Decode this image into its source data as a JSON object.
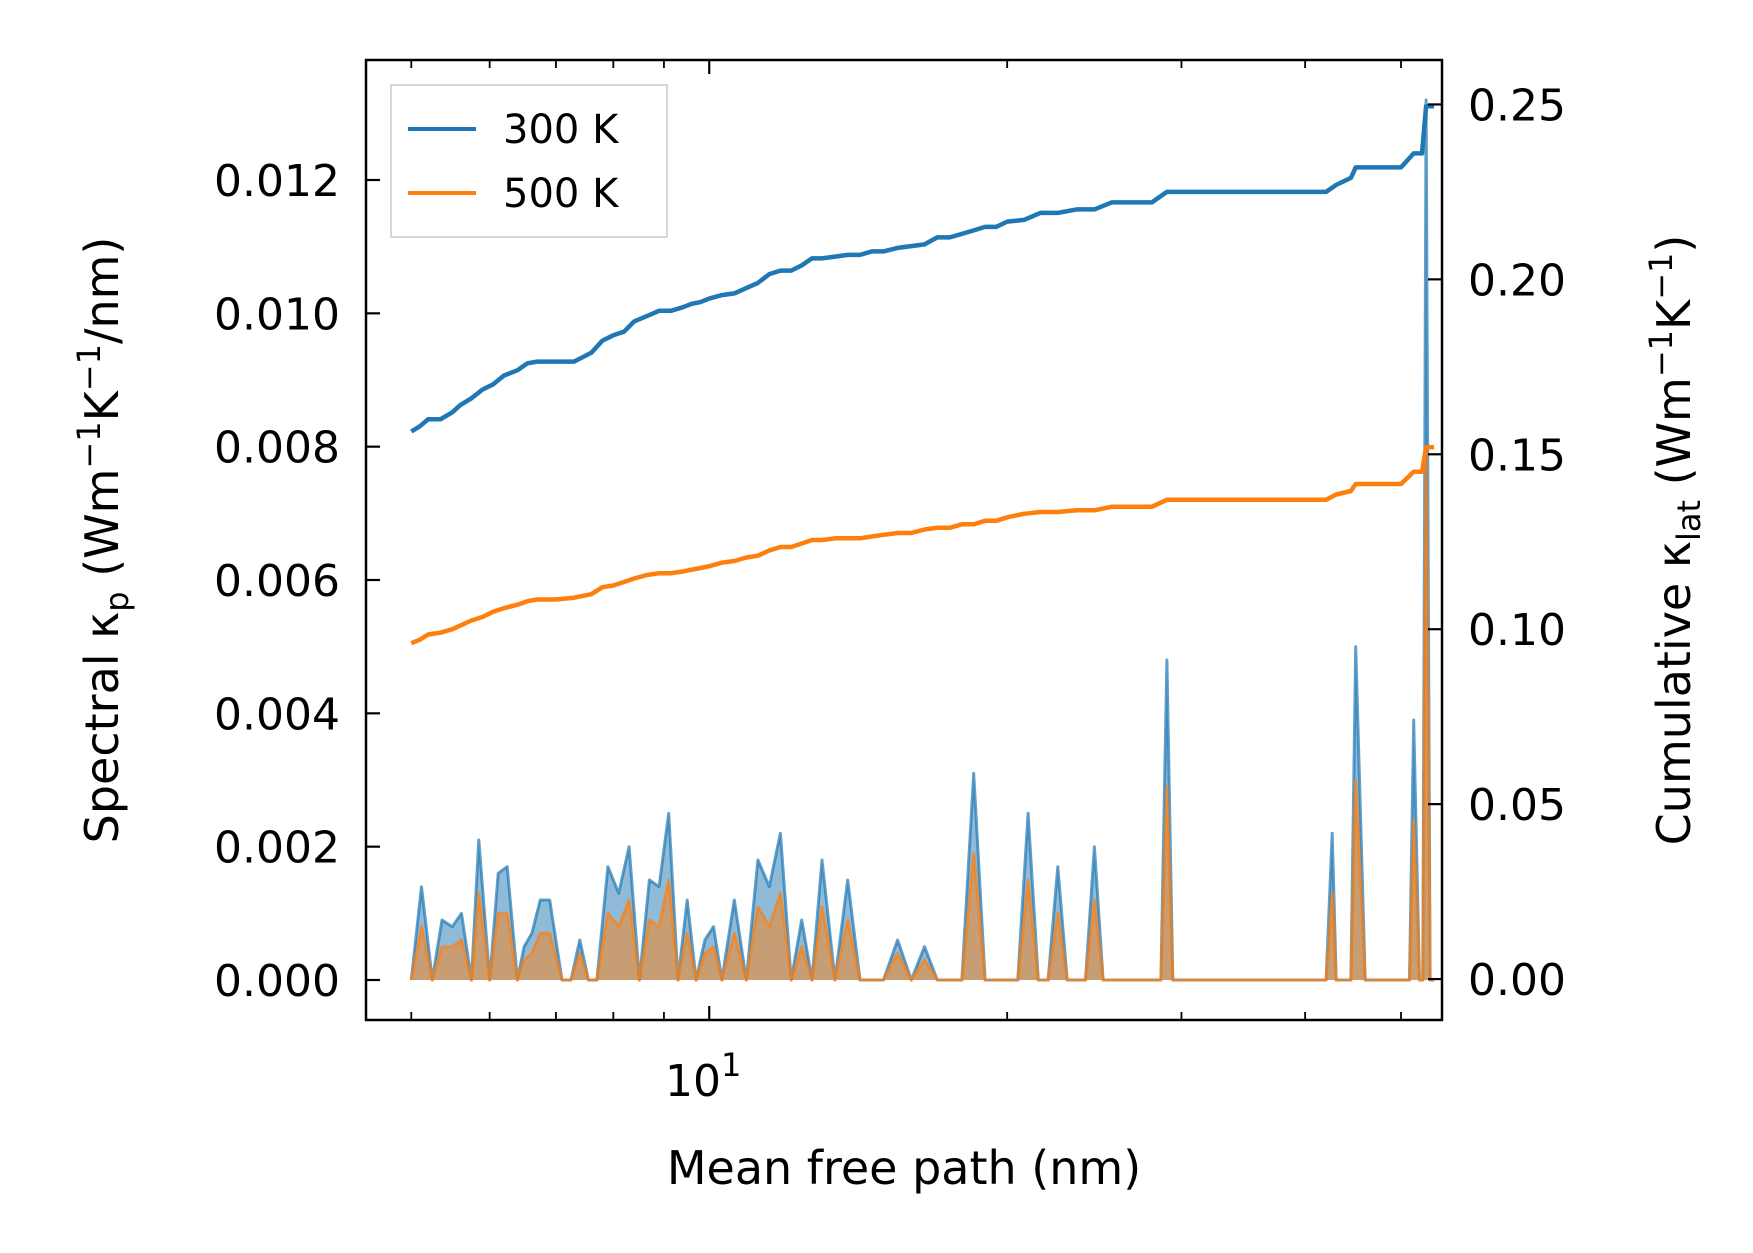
{
  "chart_data": {
    "type": "line",
    "xscale": "log",
    "xlabel": "Mean free path (nm)",
    "ylabel_left": {
      "main": "Spectral κ",
      "sub": "p",
      "unit": " (Wm",
      "e1": "−1",
      "mid": "K",
      "e2": "−1",
      "end": "/nm)"
    },
    "ylabel_right": {
      "main": "Cumulative κ",
      "sub": "lat",
      "unit": " (Wm",
      "e1": "−1",
      "mid": "K",
      "e2": "−1",
      "end": ")"
    },
    "xlim": [
      4.5,
      55
    ],
    "ylim_left": [
      -0.0006,
      0.0138
    ],
    "ylim_right": [
      -0.0117,
      0.2627
    ],
    "x_tick_labels": [
      {
        "value": 10,
        "base": "10",
        "exp": "1"
      }
    ],
    "y_left_ticks": [
      0.0,
      0.002,
      0.004,
      0.006,
      0.008,
      0.01,
      0.012
    ],
    "y_left_tick_labels": [
      "0.000",
      "0.002",
      "0.004",
      "0.006",
      "0.008",
      "0.010",
      "0.012"
    ],
    "y_right_ticks": [
      0.0,
      0.05,
      0.1,
      0.15,
      0.2,
      0.25
    ],
    "y_right_tick_labels": [
      "0.00",
      "0.05",
      "0.10",
      "0.15",
      "0.20",
      "0.25"
    ],
    "legend": {
      "position": "upper left",
      "entries": [
        {
          "label": "300 K",
          "color": "#1f77b4"
        },
        {
          "label": "500 K",
          "color": "#ff7f0e"
        }
      ]
    },
    "cumulative_series": [
      {
        "name": "300 K",
        "color": "#1f77b4",
        "axis": "right",
        "x": [
          5.0,
          5.1,
          5.2,
          5.35,
          5.5,
          5.6,
          5.75,
          5.9,
          6.05,
          6.2,
          6.4,
          6.55,
          6.7,
          6.85,
          7.0,
          7.3,
          7.6,
          7.8,
          8.0,
          8.2,
          8.4,
          8.65,
          8.9,
          9.15,
          9.4,
          9.6,
          9.8,
          10.0,
          10.3,
          10.6,
          10.9,
          11.2,
          11.5,
          11.8,
          12.1,
          12.4,
          12.7,
          13.0,
          13.4,
          13.8,
          14.2,
          14.6,
          15.0,
          15.5,
          16.0,
          16.5,
          17.0,
          17.5,
          18.0,
          18.5,
          19.0,
          19.5,
          20.0,
          20.8,
          21.6,
          22.5,
          23.5,
          24.5,
          25.5,
          26.5,
          28.0,
          29.0,
          31.0,
          34.0,
          37.0,
          40.0,
          42.0,
          43.0,
          44.5,
          45.0,
          46.5,
          48.0,
          50.0,
          51.5,
          52.5,
          53.0,
          54.0
        ],
        "y": [
          0.1565,
          0.158,
          0.16,
          0.16,
          0.162,
          0.164,
          0.166,
          0.1685,
          0.17,
          0.1725,
          0.174,
          0.176,
          0.1765,
          0.1765,
          0.1765,
          0.1765,
          0.179,
          0.1825,
          0.184,
          0.185,
          0.188,
          0.1895,
          0.191,
          0.191,
          0.192,
          0.193,
          0.1935,
          0.1945,
          0.1955,
          0.196,
          0.1975,
          0.199,
          0.2015,
          0.2025,
          0.2025,
          0.204,
          0.206,
          0.206,
          0.2065,
          0.207,
          0.207,
          0.208,
          0.208,
          0.209,
          0.2095,
          0.21,
          0.212,
          0.212,
          0.213,
          0.214,
          0.215,
          0.215,
          0.2165,
          0.217,
          0.219,
          0.219,
          0.22,
          0.22,
          0.222,
          0.222,
          0.222,
          0.225,
          0.225,
          0.225,
          0.225,
          0.225,
          0.225,
          0.227,
          0.229,
          0.232,
          0.232,
          0.232,
          0.232,
          0.236,
          0.236,
          0.2495,
          0.2495
        ]
      },
      {
        "name": "500 K",
        "color": "#ff7f0e",
        "axis": "right",
        "x": [
          5.0,
          5.1,
          5.2,
          5.35,
          5.5,
          5.6,
          5.75,
          5.9,
          6.05,
          6.2,
          6.4,
          6.55,
          6.7,
          6.85,
          7.0,
          7.3,
          7.6,
          7.8,
          8.0,
          8.2,
          8.4,
          8.65,
          8.9,
          9.15,
          9.4,
          9.6,
          9.8,
          10.0,
          10.3,
          10.6,
          10.9,
          11.2,
          11.5,
          11.8,
          12.1,
          12.4,
          12.7,
          13.0,
          13.4,
          13.8,
          14.2,
          14.6,
          15.0,
          15.5,
          16.0,
          16.5,
          17.0,
          17.5,
          18.0,
          18.5,
          19.0,
          19.5,
          20.0,
          20.8,
          21.6,
          22.5,
          23.5,
          24.5,
          25.5,
          26.5,
          28.0,
          29.0,
          31.0,
          34.0,
          37.0,
          40.0,
          42.0,
          43.0,
          44.5,
          45.0,
          46.5,
          48.0,
          50.0,
          51.5,
          52.5,
          53.0,
          54.0
        ],
        "y": [
          0.096,
          0.097,
          0.0985,
          0.099,
          0.1,
          0.101,
          0.1025,
          0.1035,
          0.105,
          0.106,
          0.107,
          0.108,
          0.1085,
          0.1085,
          0.1085,
          0.109,
          0.11,
          0.112,
          0.1125,
          0.1135,
          0.1145,
          0.1155,
          0.116,
          0.116,
          0.1165,
          0.117,
          0.1175,
          0.118,
          0.119,
          0.1195,
          0.1205,
          0.121,
          0.1225,
          0.1235,
          0.1235,
          0.1245,
          0.1255,
          0.1255,
          0.126,
          0.126,
          0.126,
          0.1265,
          0.127,
          0.1275,
          0.1275,
          0.1285,
          0.129,
          0.129,
          0.13,
          0.13,
          0.131,
          0.131,
          0.132,
          0.133,
          0.1335,
          0.1335,
          0.134,
          0.134,
          0.135,
          0.135,
          0.135,
          0.137,
          0.137,
          0.137,
          0.137,
          0.137,
          0.137,
          0.1385,
          0.1395,
          0.1415,
          0.1415,
          0.1415,
          0.1415,
          0.145,
          0.145,
          0.152,
          0.152
        ]
      }
    ],
    "spectral_series": [
      {
        "name": "300 K",
        "color": "#1f77b4",
        "axis": "left",
        "x": [
          5.0,
          5.12,
          5.25,
          5.37,
          5.5,
          5.62,
          5.75,
          5.85,
          6.0,
          6.12,
          6.25,
          6.4,
          6.5,
          6.62,
          6.75,
          6.9,
          7.1,
          7.25,
          7.4,
          7.55,
          7.7,
          7.9,
          8.1,
          8.3,
          8.5,
          8.7,
          8.9,
          9.1,
          9.3,
          9.5,
          9.7,
          9.9,
          10.1,
          10.3,
          10.6,
          10.9,
          11.2,
          11.5,
          11.8,
          12.1,
          12.4,
          12.7,
          13.0,
          13.4,
          13.8,
          14.2,
          14.6,
          15.0,
          15.5,
          16.0,
          16.5,
          17.0,
          17.5,
          18.0,
          18.5,
          19.0,
          19.5,
          20.0,
          20.5,
          21.0,
          21.5,
          22.0,
          22.5,
          23.0,
          23.5,
          24.0,
          24.5,
          25.0,
          26.0,
          27.0,
          28.0,
          28.6,
          29.0,
          29.4,
          30.0,
          35.0,
          40.0,
          42.0,
          42.6,
          43.0,
          44.0,
          44.5,
          45.0,
          46.0,
          49.0,
          50.0,
          51.0,
          51.5,
          52.2,
          52.6,
          53.0,
          53.5,
          54.0
        ],
        "y": [
          0.0,
          0.0014,
          0.0,
          0.0009,
          0.0008,
          0.001,
          0.0,
          0.0021,
          0.0,
          0.0016,
          0.0017,
          0.0,
          0.0005,
          0.0007,
          0.0012,
          0.0012,
          0.0,
          0.0,
          0.0006,
          0.0,
          0.0,
          0.0017,
          0.0013,
          0.002,
          0.0,
          0.0015,
          0.0014,
          0.0025,
          0.0,
          0.0012,
          0.0,
          0.0006,
          0.0008,
          0.0,
          0.0012,
          0.0,
          0.0018,
          0.0014,
          0.0022,
          0.0,
          0.0009,
          0.0,
          0.0018,
          0.0,
          0.0015,
          0.0,
          0.0,
          0.0,
          0.0006,
          0.0,
          0.0005,
          0.0,
          0.0,
          0.0,
          0.0031,
          0.0,
          0.0,
          0.0,
          0.0,
          0.0025,
          0.0,
          0.0,
          0.0017,
          0.0,
          0.0,
          0.0,
          0.002,
          0.0,
          0.0,
          0.0,
          0.0,
          0.0,
          0.0048,
          0.0,
          0.0,
          0.0,
          0.0,
          0.0,
          0.0022,
          0.0,
          0.0,
          0.0,
          0.005,
          0.0,
          0.0,
          0.0,
          0.0,
          0.0039,
          0.0,
          0.0,
          0.0132,
          0.0,
          0.0
        ]
      },
      {
        "name": "500 K",
        "color": "#ff7f0e",
        "axis": "left",
        "x": [
          5.0,
          5.12,
          5.25,
          5.37,
          5.5,
          5.62,
          5.75,
          5.85,
          6.0,
          6.12,
          6.25,
          6.4,
          6.5,
          6.62,
          6.75,
          6.9,
          7.1,
          7.25,
          7.4,
          7.55,
          7.7,
          7.9,
          8.1,
          8.3,
          8.5,
          8.7,
          8.9,
          9.1,
          9.3,
          9.5,
          9.7,
          9.9,
          10.1,
          10.3,
          10.6,
          10.9,
          11.2,
          11.5,
          11.8,
          12.1,
          12.4,
          12.7,
          13.0,
          13.4,
          13.8,
          14.2,
          14.6,
          15.0,
          15.5,
          16.0,
          16.5,
          17.0,
          17.5,
          18.0,
          18.5,
          19.0,
          19.5,
          20.0,
          20.5,
          21.0,
          21.5,
          22.0,
          22.5,
          23.0,
          23.5,
          24.0,
          24.5,
          25.0,
          26.0,
          27.0,
          28.0,
          28.6,
          29.0,
          29.4,
          30.0,
          35.0,
          40.0,
          42.0,
          42.6,
          43.0,
          44.0,
          44.5,
          45.0,
          46.0,
          49.0,
          50.0,
          51.0,
          51.5,
          52.2,
          52.6,
          53.0,
          53.5,
          54.0
        ],
        "y": [
          0.0,
          0.0008,
          0.0,
          0.0005,
          0.0005,
          0.0006,
          0.0,
          0.0013,
          0.0,
          0.001,
          0.001,
          0.0,
          0.0003,
          0.0004,
          0.0007,
          0.0007,
          0.0,
          0.0,
          0.0004,
          0.0,
          0.0,
          0.001,
          0.0008,
          0.0012,
          0.0,
          0.0009,
          0.0008,
          0.0015,
          0.0,
          0.0007,
          0.0,
          0.0004,
          0.0005,
          0.0,
          0.0007,
          0.0,
          0.0011,
          0.0008,
          0.0013,
          0.0,
          0.0005,
          0.0,
          0.0011,
          0.0,
          0.0009,
          0.0,
          0.0,
          0.0,
          0.0004,
          0.0,
          0.0003,
          0.0,
          0.0,
          0.0,
          0.0019,
          0.0,
          0.0,
          0.0,
          0.0,
          0.0015,
          0.0,
          0.0,
          0.001,
          0.0,
          0.0,
          0.0,
          0.0012,
          0.0,
          0.0,
          0.0,
          0.0,
          0.0,
          0.0029,
          0.0,
          0.0,
          0.0,
          0.0,
          0.0,
          0.0013,
          0.0,
          0.0,
          0.0,
          0.003,
          0.0,
          0.0,
          0.0,
          0.0,
          0.0024,
          0.0,
          0.0,
          0.008,
          0.0,
          0.0
        ]
      }
    ]
  }
}
